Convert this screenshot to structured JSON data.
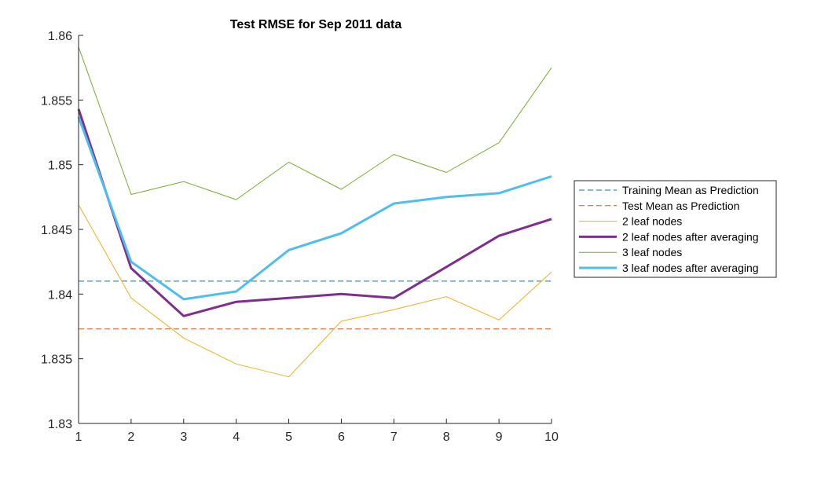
{
  "chart_data": {
    "type": "line",
    "title": "Test RMSE for Sep 2011 data",
    "xlabel": "",
    "ylabel": "",
    "x": [
      1,
      2,
      3,
      4,
      5,
      6,
      7,
      8,
      9,
      10
    ],
    "xlim": [
      1,
      10
    ],
    "ylim": [
      1.83,
      1.86
    ],
    "xticks": [
      "1",
      "2",
      "3",
      "4",
      "5",
      "6",
      "7",
      "8",
      "9",
      "10"
    ],
    "yticks": [
      "1.83",
      "1.835",
      "1.84",
      "1.845",
      "1.85",
      "1.855",
      "1.86"
    ],
    "grid": false,
    "legend_position": "right",
    "series": [
      {
        "name": "Training Mean as Prediction",
        "color": "#0072BD",
        "style": "dashed",
        "width": 1,
        "values": [
          1.841,
          1.841,
          1.841,
          1.841,
          1.841,
          1.841,
          1.841,
          1.841,
          1.841,
          1.841
        ]
      },
      {
        "name": "Test Mean as Prediction",
        "color": "#D95319",
        "style": "dashed",
        "width": 1,
        "values": [
          1.8373,
          1.8373,
          1.8373,
          1.8373,
          1.8373,
          1.8373,
          1.8373,
          1.8373,
          1.8373,
          1.8373
        ]
      },
      {
        "name": "2 leaf nodes",
        "color": "#EDB120",
        "style": "solid",
        "width": 1,
        "values": [
          1.8469,
          1.8397,
          1.8366,
          1.8346,
          1.8336,
          1.8379,
          1.8388,
          1.8398,
          1.838,
          1.8417
        ]
      },
      {
        "name": "2 leaf nodes after averaging",
        "color": "#7E2F8E",
        "style": "solid",
        "width": 3,
        "values": [
          1.8543,
          1.842,
          1.8383,
          1.8394,
          1.8397,
          1.84,
          1.8397,
          1.8421,
          1.8445,
          1.8458
        ]
      },
      {
        "name": "3 leaf nodes",
        "color": "#77AC30",
        "style": "solid",
        "width": 1,
        "values": [
          1.8591,
          1.8477,
          1.8487,
          1.8473,
          1.8502,
          1.8481,
          1.8508,
          1.8494,
          1.8517,
          1.8575
        ]
      },
      {
        "name": "3 leaf nodes after averaging",
        "color": "#4DBEEE",
        "style": "solid",
        "width": 3,
        "values": [
          1.8537,
          1.8425,
          1.8396,
          1.8402,
          1.8434,
          1.8447,
          1.847,
          1.8475,
          1.8478,
          1.8491
        ]
      }
    ]
  }
}
